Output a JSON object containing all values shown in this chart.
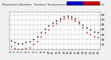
{
  "title": "Milwaukee Weather  Outdoor Temperature vs Wind Chill  (24 Hours)",
  "title_fontsize": 3.2,
  "background_color": "#f0f0f0",
  "plot_bg_color": "#ffffff",
  "grid_color": "#aaaaaa",
  "temp_color": "#000000",
  "windchill_color": "#cc0000",
  "blue_color": "#0000cc",
  "legend_temp_color": "#0000cc",
  "legend_wc_color": "#cc0000",
  "ylabel_fontsize": 3.2,
  "xlabel_fontsize": 2.8,
  "ylim": [
    20,
    58
  ],
  "xlim": [
    -0.5,
    23.5
  ],
  "yticks": [
    25,
    30,
    35,
    40,
    45,
    50,
    55
  ],
  "xticks": [
    0,
    1,
    2,
    3,
    4,
    5,
    6,
    7,
    8,
    9,
    10,
    11,
    12,
    13,
    14,
    15,
    16,
    17,
    18,
    19,
    20,
    21,
    22,
    23
  ],
  "hours": [
    0,
    1,
    2,
    3,
    4,
    5,
    6,
    7,
    8,
    9,
    10,
    11,
    12,
    13,
    14,
    15,
    16,
    17,
    18,
    19,
    20,
    21,
    22,
    23
  ],
  "temp": [
    29,
    27,
    26,
    26,
    27,
    28,
    30,
    33,
    37,
    41,
    44,
    47,
    49,
    51,
    53,
    54,
    53,
    51,
    48,
    45,
    42,
    40,
    38,
    37
  ],
  "windchill": [
    23,
    21,
    20,
    20,
    21,
    22,
    25,
    28,
    33,
    37,
    40,
    44,
    46,
    49,
    51,
    52,
    51,
    49,
    46,
    42,
    37,
    35,
    33,
    32
  ]
}
